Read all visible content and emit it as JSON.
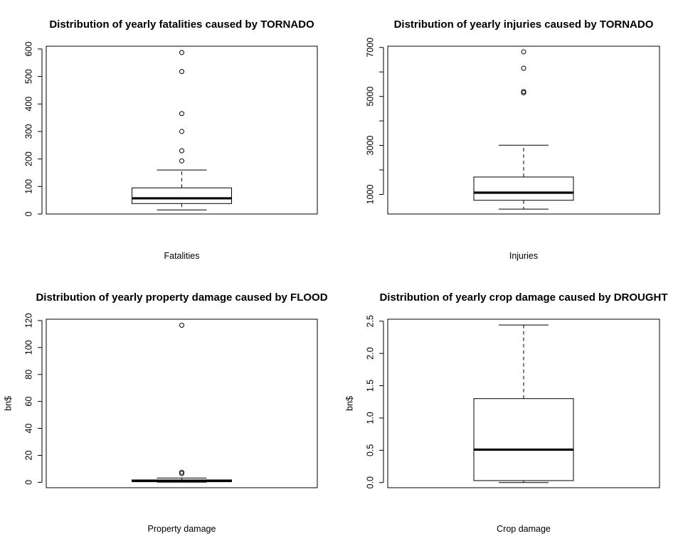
{
  "chart_data": [
    {
      "type": "boxplot",
      "title": "Distribution of yearly fatalities caused by TORNADO",
      "xlabel": "Fatalities",
      "ylabel": "",
      "ylim": [
        0,
        610
      ],
      "yticks": [
        0,
        100,
        200,
        300,
        400,
        500,
        600
      ],
      "ytick_labels": [
        "0",
        "100",
        "200",
        "300",
        "400",
        "500",
        "600"
      ],
      "box": {
        "whisker_low": 15,
        "q1": 38,
        "median": 57,
        "q3": 95,
        "whisker_high": 160
      },
      "outliers": [
        193,
        230,
        300,
        365,
        518,
        587
      ]
    },
    {
      "type": "boxplot",
      "title": "Distribution of yearly injuries caused by TORNADO",
      "xlabel": "Injuries",
      "ylabel": "",
      "ylim": [
        200,
        7050
      ],
      "yticks": [
        1000,
        2000,
        3000,
        4000,
        5000,
        6000,
        7000
      ],
      "ytick_labels": [
        "1000",
        "",
        "3000",
        "",
        "5000",
        "",
        "7000"
      ],
      "box": {
        "whisker_low": 400,
        "q1": 760,
        "median": 1070,
        "q3": 1710,
        "whisker_high": 3010
      },
      "outliers": [
        5150,
        5200,
        6150,
        6820
      ]
    },
    {
      "type": "boxplot",
      "title": "Distribution of yearly property damage caused by FLOOD",
      "xlabel": "Property damage",
      "ylabel": "bn$",
      "ylim": [
        -4,
        121
      ],
      "yticks": [
        0,
        20,
        40,
        60,
        80,
        100,
        120
      ],
      "ytick_labels": [
        "0",
        "20",
        "40",
        "60",
        "80",
        "100",
        "120"
      ],
      "box": {
        "whisker_low": 0.1,
        "q1": 0.5,
        "median": 1.0,
        "q3": 1.8,
        "whisker_high": 3.2
      },
      "outliers": [
        6.5,
        7.5,
        116.5
      ]
    },
    {
      "type": "boxplot",
      "title": "Distribution of yearly crop damage caused by DROUGHT",
      "xlabel": "Crop damage",
      "ylabel": "bn$",
      "ylim": [
        -0.08,
        2.53
      ],
      "yticks": [
        0.0,
        0.5,
        1.0,
        1.5,
        2.0,
        2.5
      ],
      "ytick_labels": [
        "0.0",
        "0.5",
        "1.0",
        "1.5",
        "2.0",
        "2.5"
      ],
      "box": {
        "whisker_low": 0.0,
        "q1": 0.03,
        "median": 0.51,
        "q3": 1.3,
        "whisker_high": 2.44
      },
      "outliers": []
    }
  ]
}
